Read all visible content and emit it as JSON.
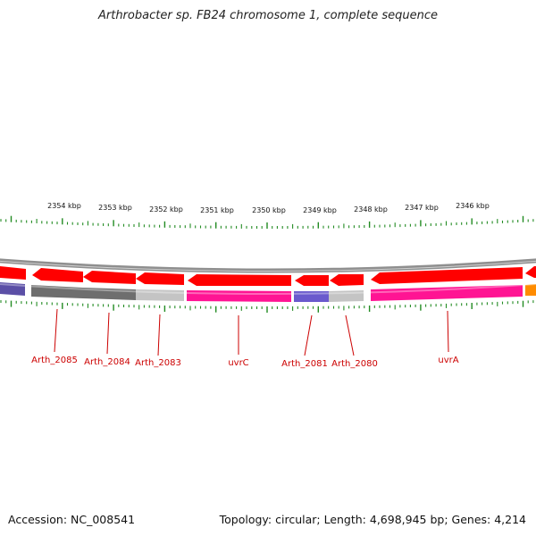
{
  "title": "Arthrobacter sp. FB24 chromosome 1, complete sequence",
  "footer": {
    "accession": "Accession: NC_008541",
    "summary": "Topology: circular; Length: 4,698,945 bp; Genes: 4,214"
  },
  "scale_labels": [
    "2354 kbp",
    "2353 kbp",
    "2352 kbp",
    "2351 kbp",
    "2350 kbp",
    "2349 kbp",
    "2348 kbp",
    "2347 kbp",
    "2346 kbp"
  ],
  "gene_labels": [
    "Arth_2085",
    "Arth_2084",
    "Arth_2083",
    "uvrC",
    "Arth_2081",
    "Arth_2080",
    "uvrA"
  ],
  "colors": {
    "gene_red": "#ff0000",
    "scale_tick": "#228b22",
    "label_red": "#cc0000",
    "backbone": "#999999",
    "gray_dark": "#6b6b6b",
    "gray_light": "#c4c4c4",
    "magenta": "#ff1493",
    "purple": "#6a5acd",
    "orange": "#ff8c00"
  }
}
